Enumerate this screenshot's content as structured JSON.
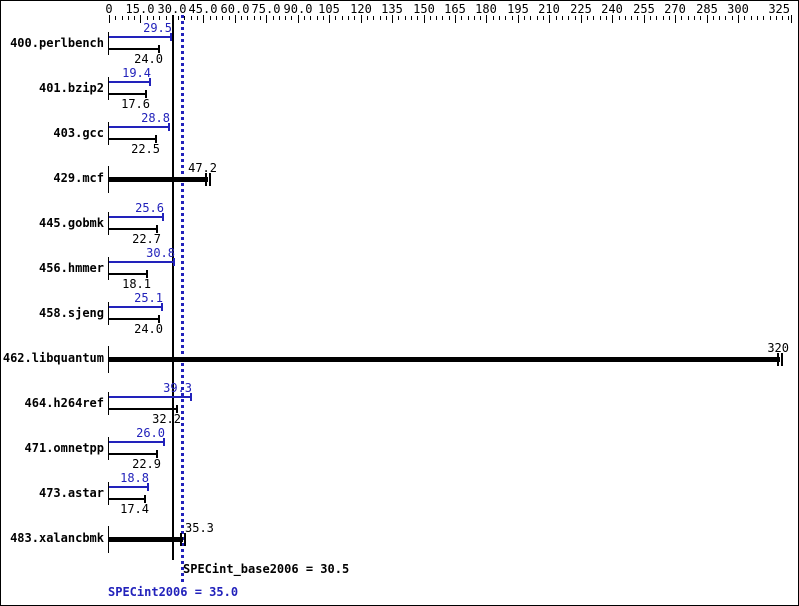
{
  "window": {
    "background": "#ffffff",
    "border_color": "#000000"
  },
  "colors": {
    "peak": "#2222bb",
    "base": "#000000"
  },
  "chart_data": {
    "type": "bar",
    "orientation": "horizontal",
    "title": "",
    "xlabel": "",
    "ylabel": "",
    "xlim": [
      0,
      325
    ],
    "grid": false,
    "legend_position": "none",
    "minor_tick_step": 3,
    "x_major_tick_values": [
      0,
      15,
      30,
      45,
      60,
      75,
      90,
      105,
      120,
      135,
      150,
      165,
      180,
      195,
      210,
      225,
      240,
      255,
      270,
      285,
      300,
      325
    ],
    "x_major_tick_labels": [
      "0",
      "15.0",
      "30.0",
      "45.0",
      "60.0",
      "75.0",
      "90.0",
      "105",
      "120",
      "135",
      "150",
      "165",
      "180",
      "195",
      "210",
      "225",
      "240",
      "255",
      "270",
      "285",
      "300",
      "325"
    ],
    "series": [
      {
        "name": "peak",
        "color_key": "peak"
      },
      {
        "name": "base",
        "color_key": "base"
      }
    ],
    "benchmarks": [
      {
        "name": "400.perlbench",
        "peak": 29.5,
        "base": 24.0,
        "single": false,
        "peak_label": "29.5",
        "base_label": "24.0"
      },
      {
        "name": "401.bzip2",
        "peak": 19.4,
        "base": 17.6,
        "single": false,
        "peak_label": "19.4",
        "base_label": "17.6"
      },
      {
        "name": "403.gcc",
        "peak": 28.8,
        "base": 22.5,
        "single": false,
        "peak_label": "28.8",
        "base_label": "22.5"
      },
      {
        "name": "429.mcf",
        "peak": 47.2,
        "base": 47.2,
        "single": true,
        "label": "47.2"
      },
      {
        "name": "445.gobmk",
        "peak": 25.6,
        "base": 22.7,
        "single": false,
        "peak_label": "25.6",
        "base_label": "22.7"
      },
      {
        "name": "456.hmmer",
        "peak": 30.8,
        "base": 18.1,
        "single": false,
        "peak_label": "30.8",
        "base_label": "18.1"
      },
      {
        "name": "458.sjeng",
        "peak": 25.1,
        "base": 24.0,
        "single": false,
        "peak_label": "25.1",
        "base_label": "24.0"
      },
      {
        "name": "462.libquantum",
        "peak": 320,
        "base": 320,
        "single": true,
        "label": "320"
      },
      {
        "name": "464.h264ref",
        "peak": 39.3,
        "base": 32.2,
        "single": false,
        "peak_label": "39.3",
        "base_label": "32.2"
      },
      {
        "name": "471.omnetpp",
        "peak": 26.0,
        "base": 22.9,
        "single": false,
        "peak_label": "26.0",
        "base_label": "22.9"
      },
      {
        "name": "473.astar",
        "peak": 18.8,
        "base": 17.4,
        "single": false,
        "peak_label": "18.8",
        "base_label": "17.4"
      },
      {
        "name": "483.xalancbmk",
        "peak": 35.3,
        "base": 35.3,
        "single": true,
        "label": "35.3"
      }
    ],
    "reference_lines": [
      {
        "name": "base_mean",
        "value": 30.5,
        "style": "solid",
        "color_key": "base",
        "label": "SPECint_base2006 = 30.5"
      },
      {
        "name": "peak_mean",
        "value": 35.0,
        "style": "dotted",
        "color_key": "peak",
        "label": "SPECint2006 = 35.0"
      }
    ]
  }
}
